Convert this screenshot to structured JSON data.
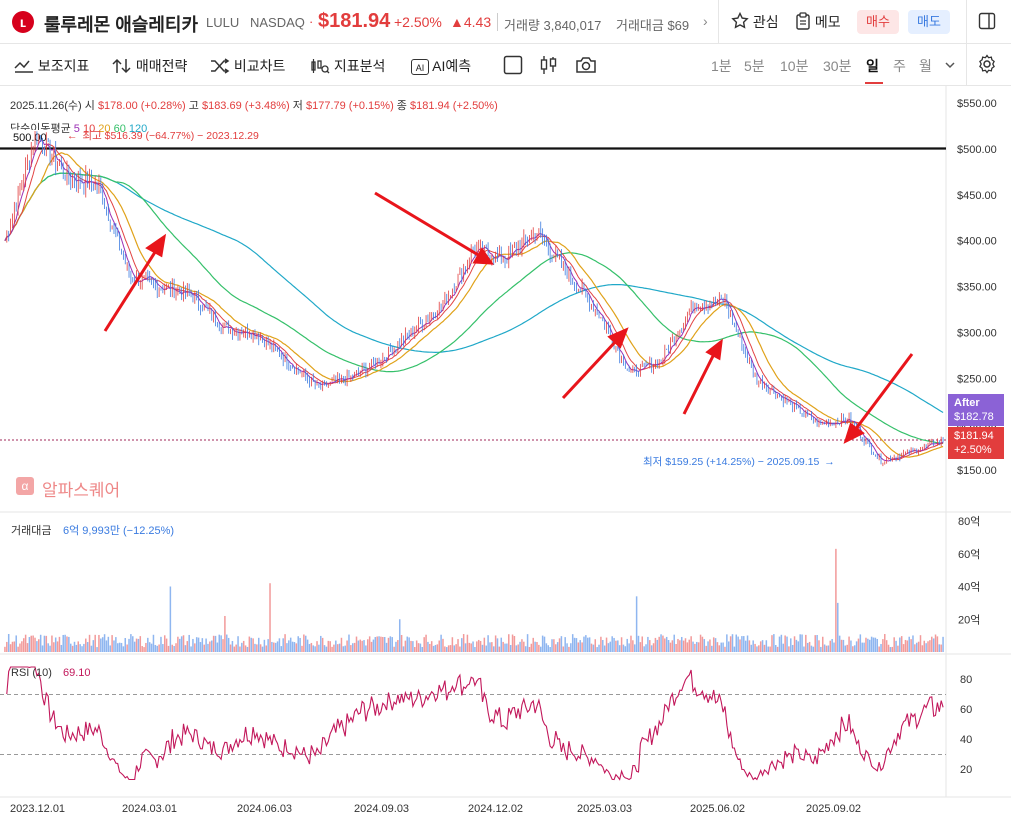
{
  "header": {
    "logo_glyph": "ʟ",
    "name": "룰루레몬 애슬레티카",
    "ticker": "LULU",
    "exchange": "NASDAQ",
    "dot": "·",
    "price": "$181.94",
    "change_pct": "+2.50%",
    "change_abs": "▲4.43",
    "volume_label": "거래량 3,840,017",
    "amount_label": "거래대금 $69",
    "chevron": "›",
    "watch_label": "관심",
    "memo_label": "메모",
    "buy_label": "매수",
    "sell_label": "매도"
  },
  "toolbar": {
    "indicators": "보조지표",
    "strategy": "매매전략",
    "compare": "비교차트",
    "analysis": "지표분석",
    "ai": "AI예측",
    "ai_badge": "AI",
    "timeframes": [
      "1분",
      "5분",
      "10분",
      "30분",
      "일",
      "주",
      "월"
    ],
    "active_timeframe": "일"
  },
  "info": {
    "date": "2025.11.26(수)",
    "open_label": "시",
    "open": "$178.00 (+0.28%)",
    "high_label": "고",
    "high": "$183.69 (+3.48%)",
    "low_label": "저",
    "low": "$177.79 (+0.15%)",
    "close_label": "종",
    "close": "$181.94 (+2.50%)"
  },
  "ma_legend": {
    "label": "단순이동평균",
    "periods": [
      "5",
      "10",
      "20",
      "60",
      "120"
    ],
    "colors": [
      "#9b2fb5",
      "#e0a21a",
      "#e0a21a",
      "#35c06a",
      "#20a8c8"
    ]
  },
  "annotations": {
    "high": "최고 $516.39 (−64.77%) − 2023.12.29",
    "low": "최저 $159.25 (+14.25%) − 2025.09.15",
    "hline_label": "500.00",
    "after_label": "After",
    "after_price": "$182.78",
    "last_price": "$181.94",
    "last_change": "+2.50%"
  },
  "watermark": "알파스퀘어",
  "volume_panel": {
    "title": "거래대금",
    "value": "6억 9,993만 (−12.25%)",
    "axis": [
      "80억",
      "60억",
      "40억",
      "20억"
    ]
  },
  "rsi_panel": {
    "title": "RSI (10)",
    "value": "69.10",
    "axis": [
      "80",
      "60",
      "40",
      "20"
    ]
  },
  "colors": {
    "up": "#e23d3d",
    "down": "#3a7be0",
    "rsi": "#c2185b",
    "arrow": "#e8151b"
  },
  "chart_data": [
    {
      "type": "line",
      "title": "LULU",
      "ylim": [
        140,
        560
      ],
      "y_ticks": [
        "$550.00",
        "$500.00",
        "$450.00",
        "$400.00",
        "$350.00",
        "$300.00",
        "$250.00",
        "$200.00",
        "$150.00"
      ],
      "x_ticks": [
        "2023.12.01",
        "2024.03.01",
        "2024.06.03",
        "2024.09.03",
        "2024.12.02",
        "2025.03.03",
        "2025.06.02",
        "2025.09.02"
      ],
      "x": [
        "2023.12.01",
        "2023.12.29",
        "2024.02.01",
        "2024.03.01",
        "2024.03.22",
        "2024.04.15",
        "2024.05.15",
        "2024.06.03",
        "2024.07.01",
        "2024.08.01",
        "2024.08.16",
        "2024.09.03",
        "2024.10.01",
        "2024.11.01",
        "2024.12.02",
        "2024.12.20",
        "2025.01.15",
        "2025.01.31",
        "2025.03.03",
        "2025.03.28",
        "2025.04.10",
        "2025.05.01",
        "2025.05.28",
        "2025.06.02",
        "2025.06.20",
        "2025.07.15",
        "2025.08.05",
        "2025.08.29",
        "2025.09.15",
        "2025.10.15",
        "2025.11.26"
      ],
      "series": [
        {
          "values": [
            400,
            516,
            470,
            460,
            360,
            350,
            340,
            305,
            300,
            270,
            240,
            250,
            270,
            300,
            330,
            390,
            380,
            410,
            365,
            320,
            255,
            270,
            330,
            335,
            250,
            225,
            200,
            205,
            160,
            170,
            182
          ]
        }
      ],
      "hline": 500
    },
    {
      "type": "bar",
      "title": "거래대금",
      "ylim": [
        0,
        80
      ]
    },
    {
      "type": "line",
      "title": "RSI (10)",
      "ylim": [
        10,
        90
      ],
      "levels": [
        70,
        30
      ]
    }
  ]
}
